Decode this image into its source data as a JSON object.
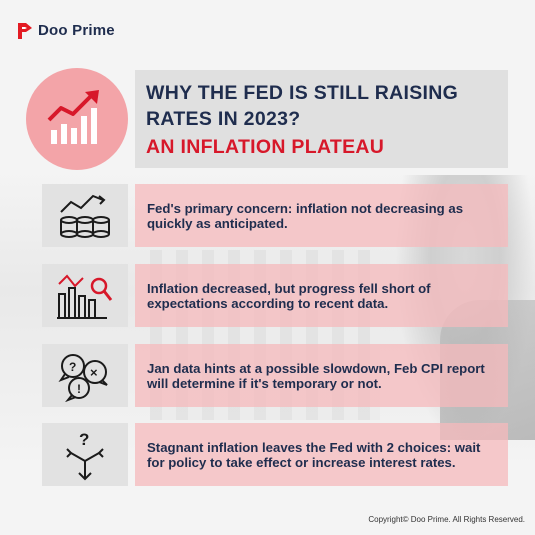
{
  "brand": {
    "name": "Doo Prime"
  },
  "title": {
    "line1": "WHY THE FED IS STILL RAISING",
    "line2": "RATES IN 2023?",
    "line3": "AN INFLATION PLATEAU"
  },
  "rows": [
    {
      "icon": "chart-coins-icon",
      "text": "Fed's primary concern: inflation not decreasing as quickly as anticipated."
    },
    {
      "icon": "bar-chart-magnifier-icon",
      "text": "Inflation decreased, but progress fell short of expectations according to recent data."
    },
    {
      "icon": "chat-bubbles-icon",
      "text": "Jan data hints at a possible slowdown,  Feb CPI report will determine if it's temporary or not."
    },
    {
      "icon": "crossroads-question-icon",
      "text": "Stagnant inflation leaves the Fed with 2 choices: wait for policy to take effect or increase interest rates."
    }
  ],
  "footer": {
    "copyright": "Copyright© Doo Prime. All Rights Reserved."
  },
  "colors": {
    "navy": "#1f2d4e",
    "red": "#d7182a",
    "pink": "#f3a4a8"
  }
}
